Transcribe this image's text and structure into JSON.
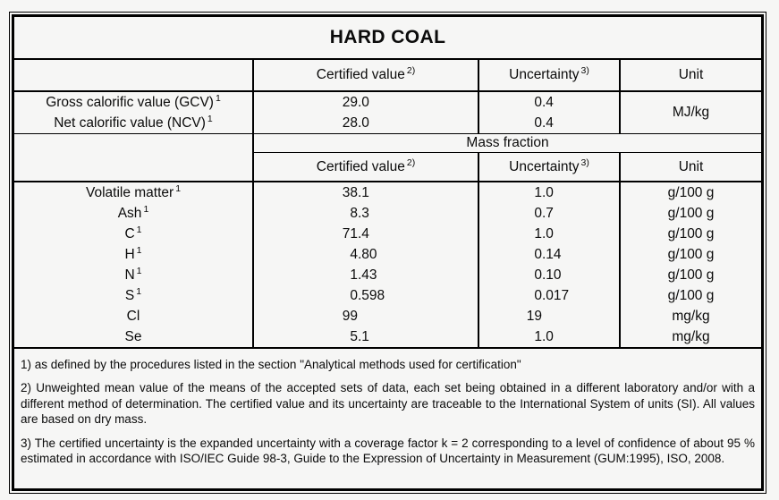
{
  "title": "HARD COAL",
  "colors": {
    "background": "#f6f6f5",
    "border": "#000000",
    "text": "#0b0b0b"
  },
  "table": {
    "header": {
      "certified_value": {
        "label": "Certified value",
        "sup": "2)"
      },
      "uncertainty": {
        "label": "Uncertainty",
        "sup": "3)"
      },
      "unit": "Unit"
    },
    "calorific_rows": [
      {
        "label": "Gross calorific value (GCV)",
        "sup": "1",
        "certified_value": "29.0",
        "uncertainty": "0.4"
      },
      {
        "label": "Net calorific value (NCV)",
        "sup": "1",
        "certified_value": "28.0",
        "uncertainty": "0.4"
      }
    ],
    "calorific_unit": "MJ/kg",
    "section_header": "Mass fraction",
    "mass_fraction_rows": [
      {
        "label": "Volatile matter",
        "sup": "1",
        "certified_value": "38.1",
        "uncertainty": "1.0",
        "unit": "g/100 g"
      },
      {
        "label": "Ash",
        "sup": "1",
        "certified_value": "8.3",
        "uncertainty": "0.7",
        "unit": "g/100 g"
      },
      {
        "label": "C",
        "sup": "1",
        "certified_value": "71.4",
        "uncertainty": "1.0",
        "unit": "g/100 g"
      },
      {
        "label": "H",
        "sup": "1",
        "certified_value": "4.80",
        "uncertainty": "0.14",
        "unit": "g/100 g"
      },
      {
        "label": "N",
        "sup": "1",
        "certified_value": "1.43",
        "uncertainty": "0.10",
        "unit": "g/100 g"
      },
      {
        "label": "S",
        "sup": "1",
        "certified_value": "0.598",
        "uncertainty": "0.017",
        "unit": "g/100 g"
      },
      {
        "label": "Cl",
        "sup": "",
        "certified_value": "99",
        "uncertainty": "19",
        "unit": "mg/kg"
      },
      {
        "label": "Se",
        "sup": "",
        "certified_value": "5.1",
        "uncertainty": "1.0",
        "unit": "mg/kg"
      }
    ]
  },
  "footnotes": [
    "1) as defined by the procedures listed in the section \"Analytical methods used for certification\"",
    "2) Unweighted mean value of the means of the accepted sets of data, each set being obtained in a different laboratory and/or with a different method of determination. The certified value and its uncertainty are traceable to the International System of units (SI). All values are based on dry mass.",
    "3) The certified uncertainty is the expanded uncertainty with a coverage factor k = 2 corresponding to a level of confidence of about 95 % estimated in accordance with ISO/IEC Guide 98-3, Guide to the Expression of Uncertainty in Measurement (GUM:1995), ISO, 2008."
  ]
}
